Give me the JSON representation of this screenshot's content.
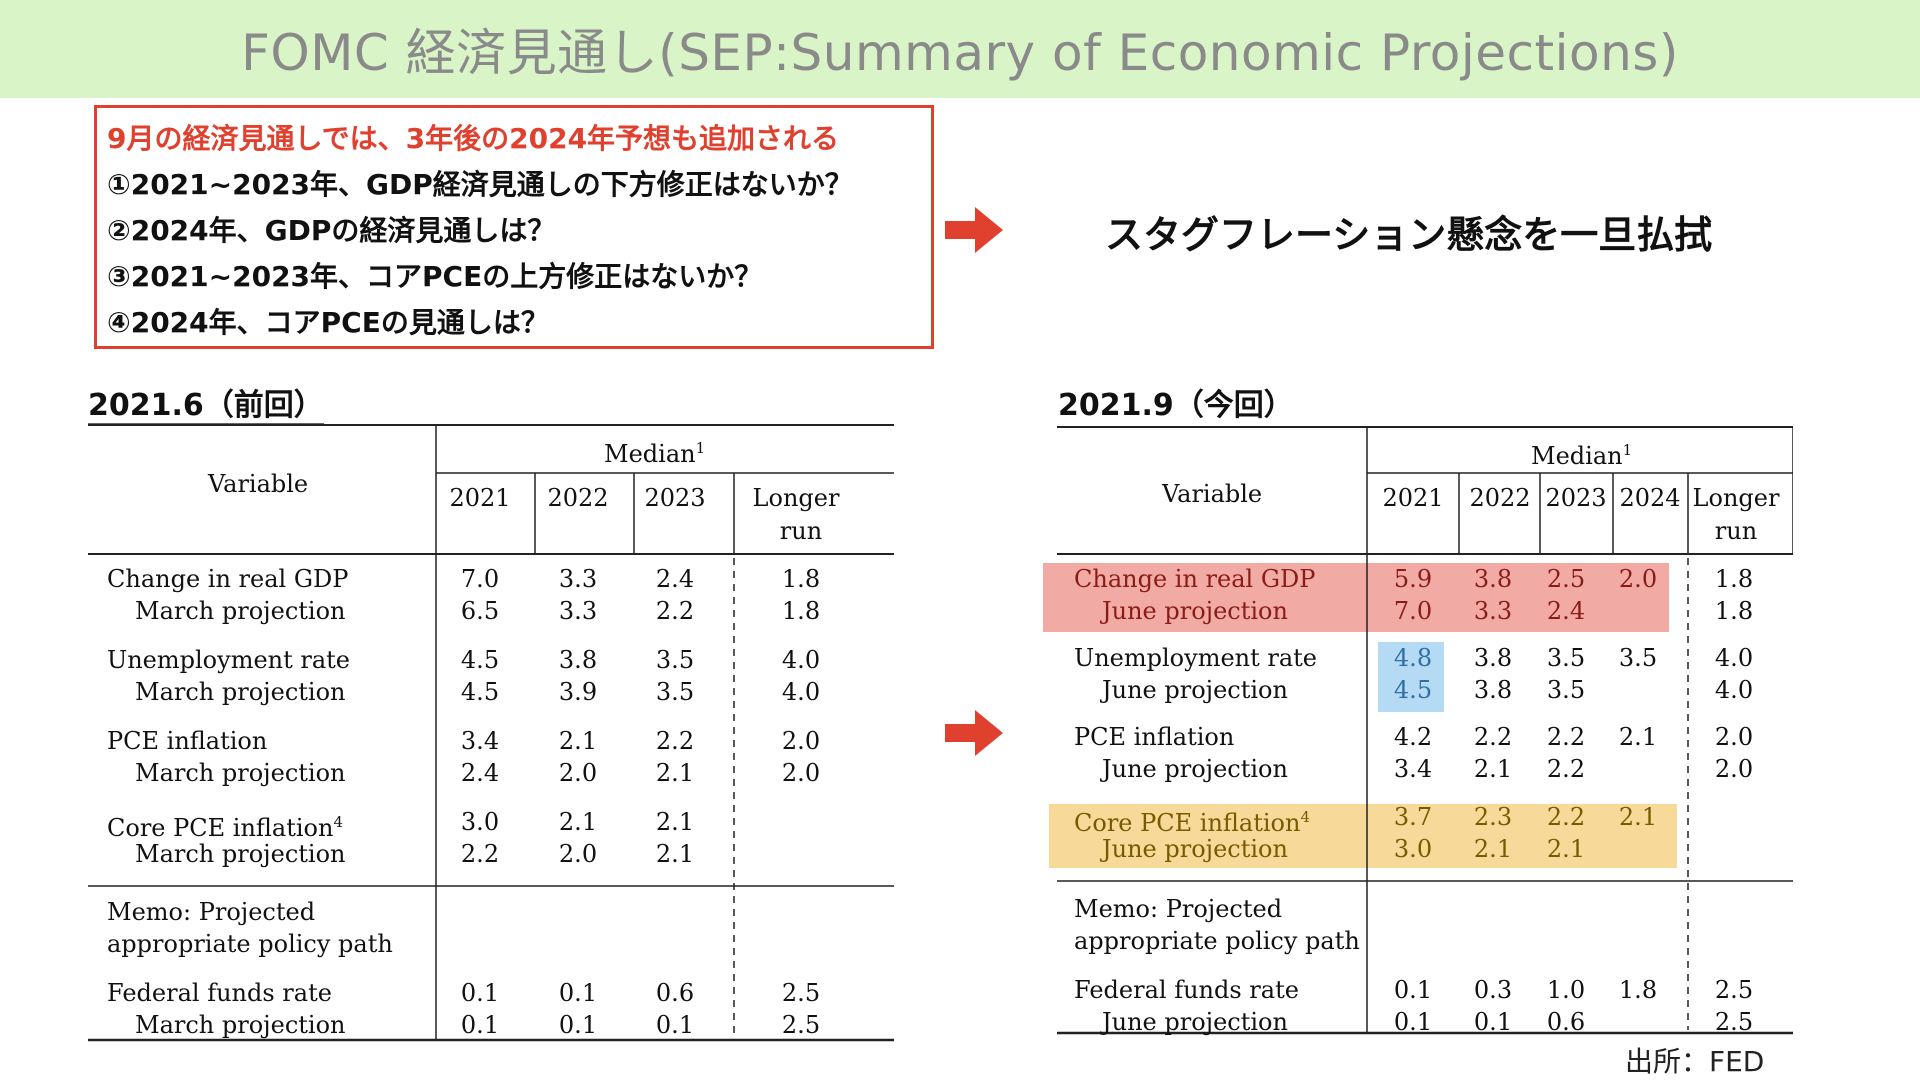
{
  "header": {
    "title": "FOMC 経済見通し(SEP:Summary of Economic Projections)"
  },
  "question_box": {
    "lines": [
      "9月の経済見通しでは、3年後の2024年予想も追加される",
      "①2021~2023年、GDP経済見通しの下方修正はないか？",
      "②2024年、GDPの経済見通しは？",
      "③2021~2023年、コアPCEの上方修正はないか？",
      "④2024年、コアPCEの見通しは？"
    ]
  },
  "conclusion": "スタグフレーション懸念を一旦払拭",
  "colors": {
    "banner": "#d9f5c7",
    "accent_red": "#e0412f",
    "highlight_red": "#f2aaa5",
    "highlight_yellow": "#f7d99a",
    "highlight_blue": "#b5daf3"
  },
  "icons": [
    "arrow-right-icon"
  ],
  "table_prev": {
    "title": "2021.6（前回）",
    "variable_header": "Variable",
    "median_header": "Median",
    "median_sup": "1",
    "years": [
      "2021",
      "2022",
      "2023"
    ],
    "longer_run": [
      "Longer",
      "run"
    ],
    "rows": [
      {
        "label": "Change in real GDP",
        "sub": "March projection",
        "vals": [
          "7.0",
          "3.3",
          "2.4"
        ],
        "lr": "1.8",
        "sub_vals": [
          "6.5",
          "3.3",
          "2.2"
        ],
        "sub_lr": "1.8"
      },
      {
        "label": "Unemployment rate",
        "sub": "March projection",
        "vals": [
          "4.5",
          "3.8",
          "3.5"
        ],
        "lr": "4.0",
        "sub_vals": [
          "4.5",
          "3.9",
          "3.5"
        ],
        "sub_lr": "4.0"
      },
      {
        "label": "PCE inflation",
        "sub": "March projection",
        "vals": [
          "3.4",
          "2.1",
          "2.2"
        ],
        "lr": "2.0",
        "sub_vals": [
          "2.4",
          "2.0",
          "2.1"
        ],
        "sub_lr": "2.0"
      },
      {
        "label": "Core PCE inflation",
        "label_sup": "4",
        "sub": "March projection",
        "vals": [
          "3.0",
          "2.1",
          "2.1"
        ],
        "lr": "",
        "sub_vals": [
          "2.2",
          "2.0",
          "2.1"
        ],
        "sub_lr": ""
      }
    ],
    "memo": [
      "Memo: Projected",
      "appropriate policy path"
    ],
    "ffr": {
      "label": "Federal funds rate",
      "sub": "March projection",
      "vals": [
        "0.1",
        "0.1",
        "0.6"
      ],
      "lr": "2.5",
      "sub_vals": [
        "0.1",
        "0.1",
        "0.1"
      ],
      "sub_lr": "2.5"
    }
  },
  "table_curr": {
    "title": "2021.9（今回）",
    "variable_header": "Variable",
    "median_header": "Median",
    "median_sup": "1",
    "years": [
      "2021",
      "2022",
      "2023",
      "2024"
    ],
    "longer_run": [
      "Longer",
      "run"
    ],
    "rows": [
      {
        "label": "Change in real GDP",
        "sub": "June projection",
        "vals": [
          "5.9",
          "3.8",
          "2.5",
          "2.0"
        ],
        "lr": "1.8",
        "sub_vals": [
          "7.0",
          "3.3",
          "2.4",
          ""
        ],
        "sub_lr": "1.8"
      },
      {
        "label": "Unemployment rate",
        "sub": "June projection",
        "vals": [
          "4.8",
          "3.8",
          "3.5",
          "3.5"
        ],
        "lr": "4.0",
        "sub_vals": [
          "4.5",
          "3.8",
          "3.5",
          ""
        ],
        "sub_lr": "4.0"
      },
      {
        "label": "PCE inflation",
        "sub": "June projection",
        "vals": [
          "4.2",
          "2.2",
          "2.2",
          "2.1"
        ],
        "lr": "2.0",
        "sub_vals": [
          "3.4",
          "2.1",
          "2.2",
          ""
        ],
        "sub_lr": "2.0"
      },
      {
        "label": "Core PCE inflation",
        "label_sup": "4",
        "sub": "June projection",
        "vals": [
          "3.7",
          "2.3",
          "2.2",
          "2.1"
        ],
        "lr": "",
        "sub_vals": [
          "3.0",
          "2.1",
          "2.1",
          ""
        ],
        "sub_lr": ""
      }
    ],
    "memo": [
      "Memo: Projected",
      "appropriate policy path"
    ],
    "ffr": {
      "label": "Federal funds rate",
      "sub": "June projection",
      "vals": [
        "0.1",
        "0.3",
        "1.0",
        "1.8"
      ],
      "lr": "2.5",
      "sub_vals": [
        "0.1",
        "0.1",
        "0.6",
        ""
      ],
      "sub_lr": "2.5"
    }
  },
  "source": "出所：FED"
}
